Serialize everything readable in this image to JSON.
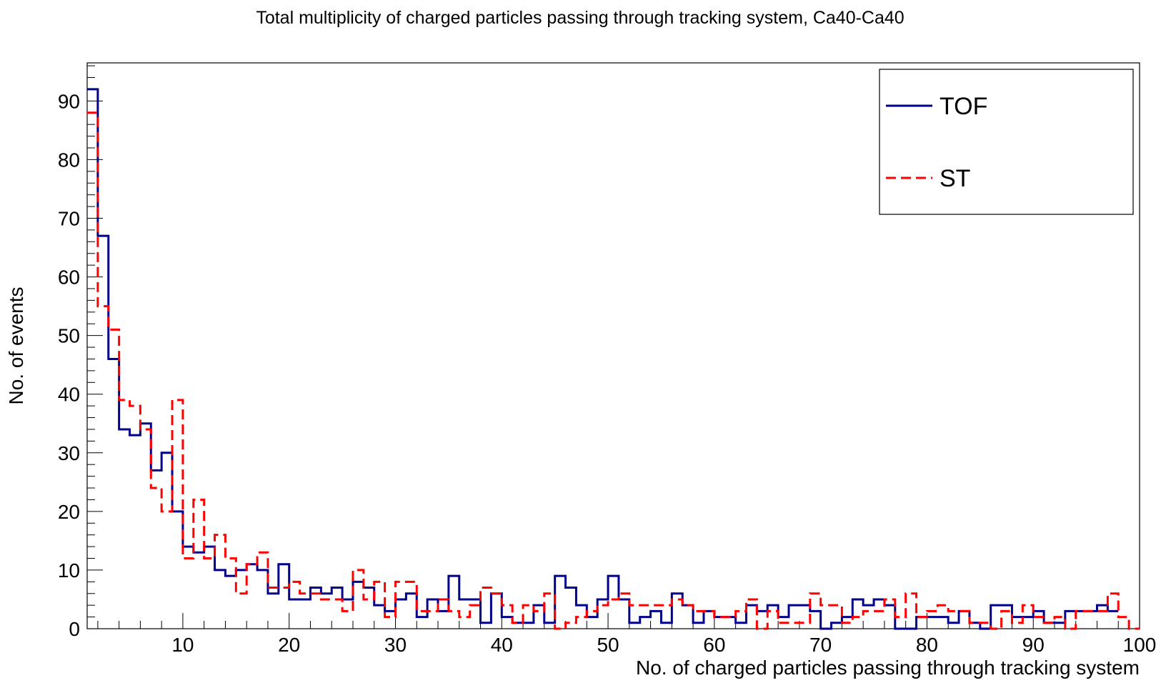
{
  "chart_data": {
    "type": "histogram-step",
    "title": "Total multiplicity of charged particles passing through tracking system, Ca40-Ca40",
    "xlabel": "No. of charged particles passing through tracking system",
    "ylabel": "No. of events",
    "xlim": [
      1,
      100
    ],
    "ylim": [
      0,
      96.5
    ],
    "x_ticks": [
      10,
      20,
      30,
      40,
      50,
      60,
      70,
      80,
      90,
      100
    ],
    "y_ticks": [
      0,
      10,
      20,
      30,
      40,
      50,
      60,
      70,
      80,
      90
    ],
    "grid": false,
    "legend_position": "top-right",
    "bin_width": 1,
    "series": [
      {
        "name": "TOF",
        "color": "#00008b",
        "style": "solid",
        "values": [
          92,
          67,
          46,
          34,
          33,
          35,
          27,
          30,
          20,
          14,
          13,
          14,
          10,
          9,
          10,
          11,
          10,
          6,
          11,
          5,
          5,
          7,
          6,
          7,
          5,
          8,
          7,
          4,
          3,
          5,
          6,
          2,
          5,
          3,
          9,
          5,
          5,
          1,
          6,
          2,
          1,
          1,
          4,
          1,
          9,
          7,
          4,
          2,
          5,
          9,
          5,
          1,
          2,
          3,
          1,
          6,
          4,
          1,
          3,
          2,
          2,
          1,
          4,
          3,
          4,
          2,
          4,
          4,
          3,
          0,
          1,
          2,
          5,
          4,
          5,
          4,
          0,
          0,
          2,
          2,
          2,
          1,
          3,
          1,
          0,
          4,
          4,
          2,
          2,
          3,
          1,
          1,
          3,
          3,
          3,
          4,
          3
        ]
      },
      {
        "name": "ST",
        "color": "#ff0000",
        "style": "dashed",
        "values": [
          88,
          55,
          51,
          39,
          38,
          34,
          24,
          20,
          39,
          12,
          22,
          12,
          16,
          12,
          6,
          11,
          13,
          7,
          7,
          8,
          6,
          6,
          5,
          5,
          3,
          10,
          5,
          8,
          2,
          8,
          8,
          3,
          3,
          5,
          3,
          2,
          4,
          7,
          6,
          4,
          1,
          4,
          3,
          6,
          0,
          1,
          2,
          3,
          4,
          5,
          6,
          4,
          4,
          4,
          4,
          5,
          4,
          3,
          3,
          2,
          2,
          3,
          5,
          0,
          3,
          1,
          1,
          1,
          6,
          4,
          4,
          1,
          2,
          3,
          3,
          5,
          2,
          6,
          2,
          3,
          4,
          3,
          3,
          1,
          1,
          0,
          3,
          1,
          4,
          2,
          1,
          2,
          0,
          3,
          3,
          3,
          6,
          2,
          0
        ]
      }
    ]
  }
}
